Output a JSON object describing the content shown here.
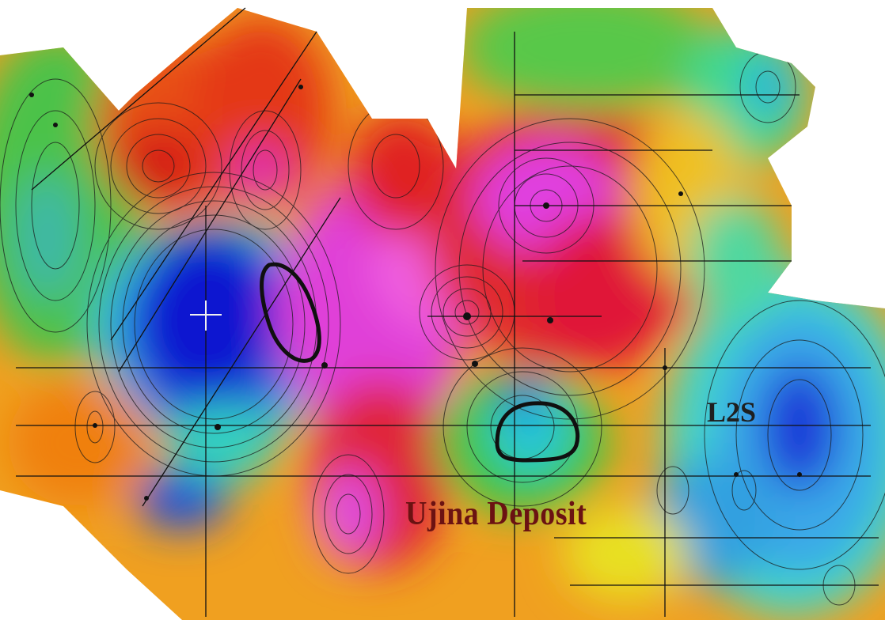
{
  "map": {
    "labels": {
      "deposit": "Ujina Deposit",
      "line": "L2S"
    },
    "colors": {
      "deposit_label": "#6b1212",
      "line_label": "#1f1f1f",
      "outline": "#101010",
      "contour": "#1a1a1a"
    }
  }
}
